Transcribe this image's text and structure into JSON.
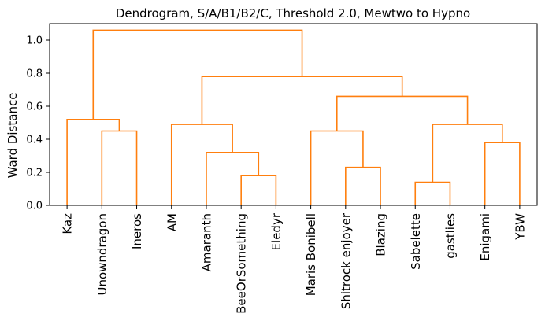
{
  "chart_data": {
    "type": "dendrogram",
    "title": "Dendrogram, S/A/B1/B2/C, Threshold 2.0, Mewtwo to Hypno",
    "ylabel": "Ward Distance",
    "xlabel": "",
    "ylim": [
      0,
      1.1
    ],
    "yticks": [
      "0.0",
      "0.2",
      "0.4",
      "0.6",
      "0.8",
      "1.0"
    ],
    "ytick_values": [
      0,
      0.2,
      0.4,
      0.6,
      0.8,
      1.0
    ],
    "leaves": [
      "Kaz",
      "Unowndragon",
      "Ineros",
      "AM",
      "Amaranth",
      "BeeOrSomething",
      "Eledyr",
      "Maris Bonibell",
      "Shitrock enjoyer",
      "Blazing",
      "Sabelette",
      "gastlies",
      "Enigami",
      "YBW"
    ],
    "link_color": "#ff7f0e",
    "merges": [
      {
        "left": 1,
        "right": 2,
        "height": 0.45
      },
      {
        "left": 0,
        "right": "m0",
        "height": 0.52
      },
      {
        "left": 5,
        "right": 6,
        "height": 0.18
      },
      {
        "left": 4,
        "right": "m2",
        "height": 0.32
      },
      {
        "left": 3,
        "right": "m3",
        "height": 0.49
      },
      {
        "left": 8,
        "right": 9,
        "height": 0.23
      },
      {
        "left": 7,
        "right": "m5",
        "height": 0.45
      },
      {
        "left": 10,
        "right": 11,
        "height": 0.14
      },
      {
        "left": 12,
        "right": 13,
        "height": 0.38
      },
      {
        "left": "m7",
        "right": "m8",
        "height": 0.49
      },
      {
        "left": "m6",
        "right": "m9",
        "height": 0.66
      },
      {
        "left": "m4",
        "right": "m10",
        "height": 0.78
      },
      {
        "left": "m1",
        "right": "m11",
        "height": 1.06
      }
    ]
  }
}
